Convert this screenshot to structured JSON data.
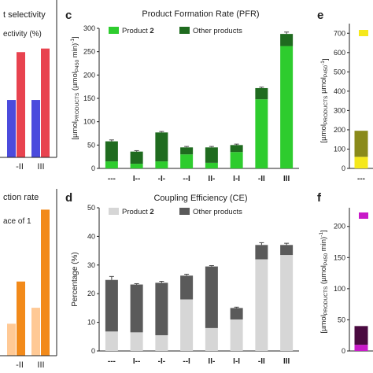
{
  "panels": {
    "a_title_fragment": "t selectivity",
    "a_ylabel_fragment": "ectivity (%)",
    "b_title_fragment": "ction rate",
    "b_legend_fragment": "ace of 1"
  },
  "chart_data": [
    {
      "id": "c",
      "panel_letter": "c",
      "type": "bar",
      "stacked": true,
      "title": "Product Formation Rate (PFR)",
      "ylabel": "[µmol_PRODUCTS (µmol_P450 min)^-1]",
      "ylabel_parts": {
        "pre": "[µmol",
        "sub1": "PRODUCTS",
        "mid": " (µmol",
        "sub2": "P450",
        "post": " min)",
        "sup": "-1",
        "close": "]"
      },
      "categories": [
        "---",
        "I--",
        "-I-",
        "--I",
        "II-",
        "I-I",
        "-II",
        "III"
      ],
      "ylim": [
        0,
        300
      ],
      "yticks": [
        0,
        50,
        100,
        150,
        200,
        250,
        300
      ],
      "series": [
        {
          "name": "Product 2",
          "name_parts": {
            "text": "Product ",
            "bold": "2"
          },
          "color": "#2ecc2e",
          "values": [
            15,
            10,
            15,
            30,
            12,
            35,
            148,
            262
          ]
        },
        {
          "name": "Other products",
          "color": "#1f6b1f",
          "values": [
            43,
            26,
            62,
            15,
            33,
            15,
            24,
            26
          ]
        }
      ],
      "errors": [
        3,
        2,
        2,
        2,
        2,
        2,
        2,
        4
      ]
    },
    {
      "id": "d",
      "panel_letter": "d",
      "type": "bar",
      "stacked": true,
      "title": "Coupling Efficiency (CE)",
      "ylabel": "Percentage (%)",
      "categories": [
        "---",
        "I--",
        "-I-",
        "--I",
        "II-",
        "I-I",
        "-II",
        "III"
      ],
      "ylim": [
        0,
        50
      ],
      "yticks": [
        0,
        10,
        20,
        30,
        40,
        50
      ],
      "series": [
        {
          "name": "Product 2",
          "name_parts": {
            "text": "Product ",
            "bold": "2"
          },
          "color": "#d6d6d6",
          "values": [
            6.8,
            6.5,
            5.5,
            18,
            8,
            11,
            32,
            33.5
          ]
        },
        {
          "name": "Other products",
          "color": "#5a5a5a",
          "values": [
            18,
            16.7,
            18.3,
            8.3,
            21.5,
            4,
            5,
            3.5
          ]
        }
      ],
      "errors": [
        1.2,
        0.3,
        0.5,
        0.5,
        0.3,
        0.3,
        0.8,
        0.6
      ]
    },
    {
      "id": "e",
      "panel_letter": "e",
      "type": "bar",
      "stacked": true,
      "ylabel": "[µmol_PRODUCTS µmol_P450^-1]",
      "ylabel_parts": {
        "pre": "[µmol",
        "sub1": "PRODUCTS",
        "mid": " µmol",
        "sub2": "P450",
        "post": "",
        "sup": "-1",
        "close": "]"
      },
      "categories": [
        "---"
      ],
      "ylim": [
        0,
        750
      ],
      "yticks": [
        0,
        100,
        200,
        300,
        400,
        500,
        600,
        700
      ],
      "series": [
        {
          "color": "#f5e81c",
          "values": [
            60
          ]
        },
        {
          "color": "#8a8a1a",
          "values": [
            135
          ]
        }
      ],
      "legend_swatch_color": "#f5e81c"
    },
    {
      "id": "f",
      "panel_letter": "f",
      "type": "bar",
      "stacked": true,
      "ylabel": "[µmol_PRODUCTS (µmol_P450 min)^-1]",
      "ylabel_parts": {
        "pre": "[µmol",
        "sub1": "PRODUCTS",
        "mid": " (µmol",
        "sub2": "P450",
        "post": " min)",
        "sup": "-1",
        "close": "]"
      },
      "categories": [
        ""
      ],
      "ylim": [
        0,
        230
      ],
      "yticks": [
        0,
        50,
        100,
        150,
        200
      ],
      "series": [
        {
          "color": "#c81ac8",
          "values": [
            10
          ]
        },
        {
          "color": "#4a0a40",
          "values": [
            30
          ]
        }
      ],
      "legend_swatch_color": "#c81ac8"
    },
    {
      "id": "a",
      "type": "bar",
      "categories": [
        "",
        "-II",
        "III"
      ],
      "series": [
        {
          "name": "",
          "color": "#4b4bdd",
          "values": [
            null,
            48,
            48
          ]
        },
        {
          "name": "",
          "color": "#e8434f",
          "values": [
            null,
            88,
            91
          ]
        }
      ]
    },
    {
      "id": "b",
      "type": "bar",
      "categories": [
        "",
        "-II",
        "III"
      ],
      "series": [
        {
          "name": "",
          "color": "#ffc995",
          "values": [
            null,
            28,
            42
          ]
        },
        {
          "name": "",
          "color": "#f28a1a",
          "values": [
            null,
            65,
            128
          ]
        }
      ]
    }
  ]
}
